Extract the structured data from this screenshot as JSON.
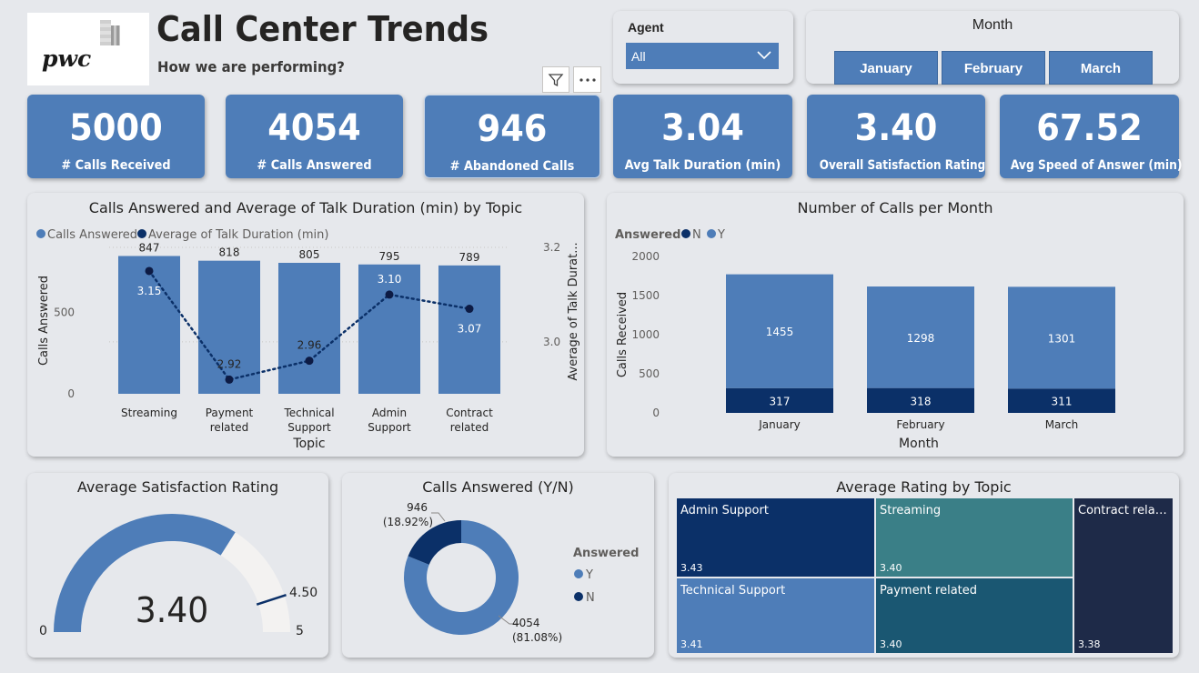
{
  "header": {
    "logo_text": "pwc",
    "title": "Call Center Trends",
    "subtitle": "How we are performing?"
  },
  "agent_filter": {
    "label": "Agent",
    "selected": "All"
  },
  "month_slicer": {
    "label": "Month",
    "options": [
      "January",
      "February",
      "March"
    ]
  },
  "kpis": [
    {
      "value": "5000",
      "label": "# Calls Received"
    },
    {
      "value": "4054",
      "label": "# Calls Answered"
    },
    {
      "value": "946",
      "label": "# Abandoned Calls"
    },
    {
      "value": "3.04",
      "label": "Avg Talk Duration (min)"
    },
    {
      "value": "3.40",
      "label": "Overall Satisfaction Rating"
    },
    {
      "value": "67.52",
      "label": "Avg Speed of Answer (min)"
    }
  ],
  "colors": {
    "accent": "#4e7db8",
    "dark_navy": "#0b3068",
    "teal": "#3a7f87",
    "petrol": "#1a5772",
    "ink": "#1e2a48"
  },
  "chart_data": [
    {
      "type": "bar",
      "title": "Calls Answered and Average of Talk Duration (min) by Topic",
      "legend": [
        "Calls Answered",
        "Average of Talk Duration (min)"
      ],
      "legend_position": "top-left",
      "categories": [
        "Streaming",
        "Payment related",
        "Technical Support",
        "Admin Support",
        "Contract related"
      ],
      "series": [
        {
          "name": "Calls Answered",
          "type": "bar",
          "values": [
            847,
            818,
            805,
            795,
            789
          ]
        },
        {
          "name": "Average of Talk Duration (min)",
          "type": "line",
          "values": [
            3.15,
            2.92,
            2.96,
            3.1,
            3.07
          ]
        }
      ],
      "xlabel": "Topic",
      "ylabel": "Calls Answered",
      "y2label": "Average of Talk Durat...",
      "yticks": [
        "0",
        "500"
      ],
      "y2ticks": [
        "3.0",
        "3.2"
      ],
      "ylim": [
        0,
        900
      ],
      "y2lim": [
        2.89,
        3.2
      ]
    },
    {
      "type": "bar",
      "stacked": true,
      "title": "Number of Calls per Month",
      "legend_title": "Answered",
      "legend": [
        "N",
        "Y"
      ],
      "legend_position": "top-left",
      "categories": [
        "January",
        "February",
        "March"
      ],
      "series": [
        {
          "name": "N",
          "values": [
            317,
            318,
            311
          ]
        },
        {
          "name": "Y",
          "values": [
            1455,
            1298,
            1301
          ]
        }
      ],
      "xlabel": "Month",
      "ylabel": "Calls Received",
      "yticks": [
        "0",
        "500",
        "1000",
        "1500",
        "2000"
      ],
      "ylim": [
        0,
        2000
      ]
    },
    {
      "type": "gauge",
      "title": "Average Satisfaction Rating",
      "value": 3.4,
      "value_label": "3.40",
      "min": 0,
      "min_label": "0",
      "max": 5,
      "max_label": "5",
      "target": 4.5,
      "target_label": "4.50"
    },
    {
      "type": "pie",
      "donut": true,
      "title": "Calls Answered (Y/N)",
      "legend_title": "Answered",
      "legend": [
        "Y",
        "N"
      ],
      "slices": [
        {
          "name": "Y",
          "value": 4054,
          "label": "4054",
          "pct_label": "(81.08%)"
        },
        {
          "name": "N",
          "value": 946,
          "label": "946",
          "pct_label": "(18.92%)"
        }
      ]
    },
    {
      "type": "treemap",
      "title": "Average Rating by Topic",
      "items": [
        {
          "name": "Admin Support",
          "value": "3.43"
        },
        {
          "name": "Streaming",
          "value": "3.40"
        },
        {
          "name": "Contract relat...",
          "value": "3.38"
        },
        {
          "name": "Technical Support",
          "value": "3.41"
        },
        {
          "name": "Payment related",
          "value": "3.40"
        }
      ]
    }
  ]
}
